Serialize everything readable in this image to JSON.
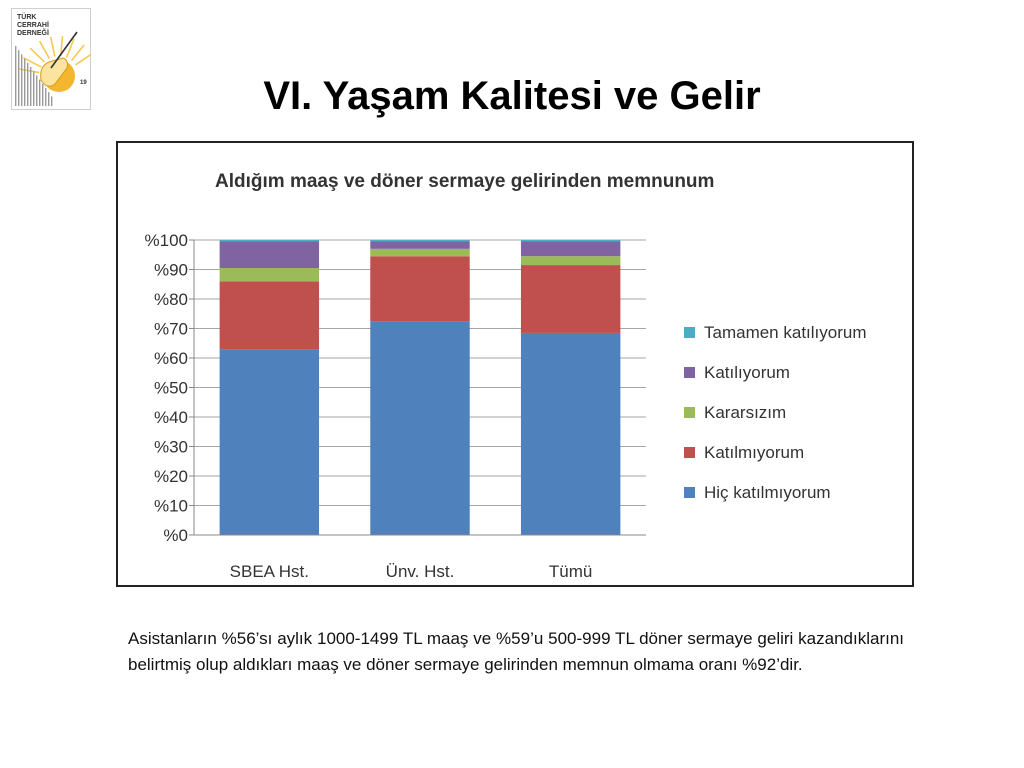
{
  "slide": {
    "title": "VI. Yaşam Kalitesi ve Gelir",
    "body": "Asistanların %56’sı aylık 1000-1499 TL maaş ve %59’u 500-999 TL döner sermaye geliri kazandıklarını belirtmiş olup aldıkları maaş ve döner sermaye gelirinden memnun olmama oranı %92’dir."
  },
  "logo": {
    "lines": [
      "TÜRK",
      "CERRAHİ",
      "DERNEĞİ"
    ],
    "year": "19",
    "colors": {
      "sun": "#f3b62e",
      "ray": "#f6c94f",
      "bars": "#9a9a9a"
    }
  },
  "chart_data": {
    "type": "bar",
    "stacked": true,
    "title": "Aldığım maaş ve döner sermaye gelirinden memnunum",
    "categories": [
      "SBEA Hst.",
      "Ünv. Hst.",
      "Tümü"
    ],
    "yticks": [
      "%0",
      "%10",
      "%20",
      "%30",
      "%40",
      "%50",
      "%60",
      "%70",
      "%80",
      "%90",
      "%100"
    ],
    "ylim": [
      0,
      100
    ],
    "grid": true,
    "legend_position": "right",
    "series": [
      {
        "name": "Hiç katılmıyorum",
        "color": "#4f81bd",
        "values": [
          63,
          72.5,
          68.5
        ]
      },
      {
        "name": "Katılmıyorum",
        "color": "#c0504d",
        "values": [
          23,
          22,
          23
        ]
      },
      {
        "name": "Kararsızım",
        "color": "#9bbb59",
        "values": [
          4.5,
          2.5,
          3
        ]
      },
      {
        "name": "Katılıyorum",
        "color": "#8064a2",
        "values": [
          9,
          2.5,
          5
        ]
      },
      {
        "name": "Tamamen katılıyorum",
        "color": "#4bacc6",
        "values": [
          0.5,
          0.5,
          0.5
        ]
      }
    ]
  }
}
